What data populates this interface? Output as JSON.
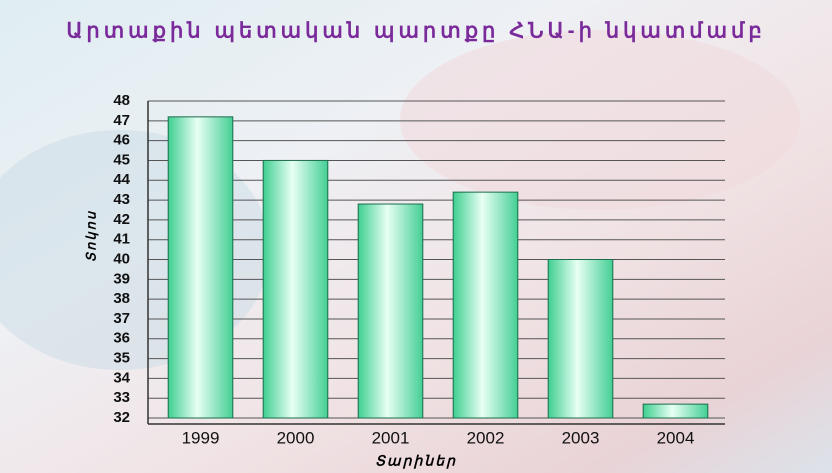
{
  "chart_data": {
    "type": "bar",
    "title": "Արտաքին պետական պարտքը ՀՆԱ-ի նկատմամբ",
    "x_label": "Տարիներ",
    "y_label": "Տոկոս",
    "categories": [
      "1999",
      "2000",
      "2001",
      "2002",
      "2003",
      "2004"
    ],
    "values": [
      47.2,
      45.0,
      42.8,
      43.4,
      40.0,
      32.7
    ],
    "color": "#5fdca8",
    "ylim": [
      32,
      48
    ],
    "yticks": [
      32,
      33,
      34,
      35,
      36,
      37,
      38,
      39,
      40,
      41,
      42,
      43,
      44,
      45,
      46,
      47,
      48
    ],
    "grid": true
  }
}
